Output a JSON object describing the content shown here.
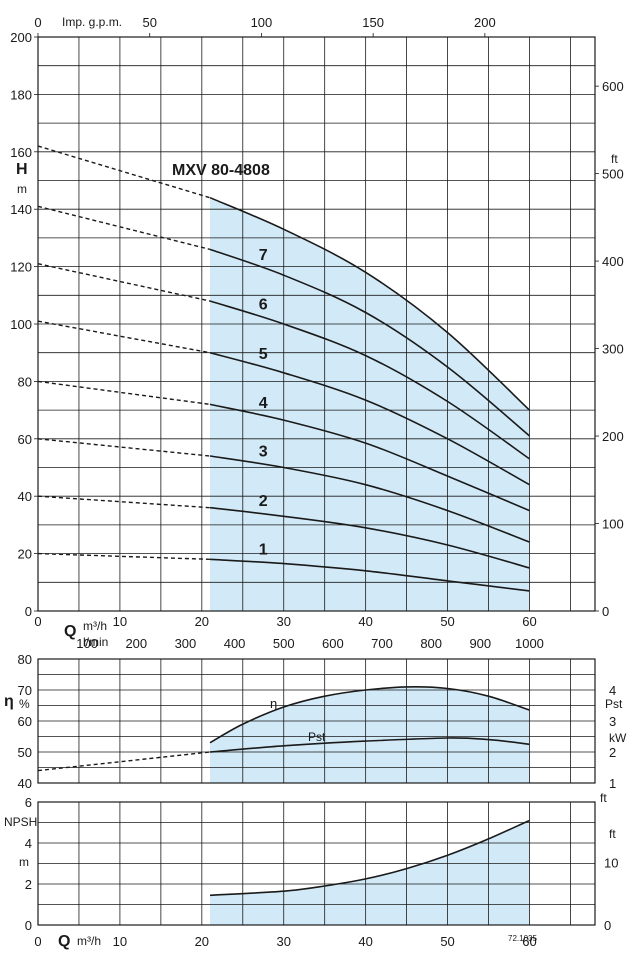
{
  "chart_data": [
    {
      "type": "line",
      "title": "MXV 80-4808",
      "ylabel": "H",
      "yunit": "m",
      "ylabel_right": "ft",
      "xlabel": "Q",
      "xunit": "m³/h",
      "xlim": [
        0,
        60
      ],
      "ylim": [
        0,
        200
      ],
      "x_ticks": [
        0,
        10,
        20,
        30,
        40,
        50,
        60
      ],
      "y_ticks": [
        0,
        20,
        40,
        60,
        80,
        100,
        120,
        140,
        160,
        180,
        200
      ],
      "right_ticks_ft": [
        0,
        100,
        200,
        300,
        400,
        500,
        600
      ],
      "top_axis_label": "Imp. g.p.m.",
      "top_ticks_gpm": [
        0,
        50,
        100,
        150,
        200
      ],
      "bottom_axis2_label": "l/min",
      "lmin_ticks": [
        0,
        100,
        200,
        300,
        400,
        500,
        600,
        700,
        800,
        900,
        1000
      ],
      "operating_range": [
        21,
        60
      ],
      "series": [
        {
          "name": "1",
          "x": [
            21,
            30,
            40,
            50,
            60
          ],
          "y": [
            18,
            16.5,
            14,
            10.5,
            7
          ],
          "shutoff": 20
        },
        {
          "name": "2",
          "x": [
            21,
            30,
            40,
            50,
            60
          ],
          "y": [
            36,
            33,
            29,
            23,
            15
          ],
          "shutoff": 40
        },
        {
          "name": "3",
          "x": [
            21,
            30,
            40,
            50,
            60
          ],
          "y": [
            54,
            50,
            44,
            35,
            24
          ],
          "shutoff": 60
        },
        {
          "name": "4",
          "x": [
            21,
            30,
            40,
            50,
            60
          ],
          "y": [
            72,
            66.5,
            58.5,
            47,
            35
          ],
          "shutoff": 80
        },
        {
          "name": "5",
          "x": [
            21,
            30,
            40,
            50,
            60
          ],
          "y": [
            90,
            83,
            73.5,
            60,
            44
          ],
          "shutoff": 101
        },
        {
          "name": "6",
          "x": [
            21,
            30,
            40,
            50,
            60
          ],
          "y": [
            108,
            100,
            89,
            73,
            53
          ],
          "shutoff": 121
        },
        {
          "name": "7",
          "x": [
            21,
            30,
            40,
            50,
            60
          ],
          "y": [
            126,
            117,
            104,
            85,
            61
          ],
          "shutoff": 141
        },
        {
          "name": "",
          "x": [
            21,
            30,
            40,
            50,
            60
          ],
          "y": [
            144,
            133,
            118,
            97,
            70
          ],
          "shutoff": 162
        }
      ]
    },
    {
      "type": "line",
      "ylabel": "η",
      "yunit": "%",
      "ylabel_right": "Pst",
      "yunit_right": "kW",
      "xlim": [
        0,
        60
      ],
      "ylim": [
        40,
        80
      ],
      "y_ticks": [
        40,
        50,
        60,
        70,
        80
      ],
      "right_ticks_kw": [
        1,
        2,
        3,
        4
      ],
      "series": [
        {
          "name": "η",
          "x": [
            21,
            25,
            30,
            35,
            40,
            45,
            50,
            55,
            60
          ],
          "y": [
            53,
            59,
            64.5,
            68,
            70,
            71,
            70.5,
            68,
            63.5
          ]
        },
        {
          "name": "Pst",
          "x": [
            21,
            30,
            40,
            50,
            55,
            60
          ],
          "y": [
            2.0,
            2.2,
            2.35,
            2.45,
            2.4,
            2.25
          ],
          "extrapolated_from": [
            0,
            1.4
          ]
        }
      ]
    },
    {
      "type": "line",
      "ylabel": "NPSH",
      "yunit": "m",
      "ylabel_right": "ft",
      "xlabel": "Q",
      "xunit": "m³/h",
      "xlim": [
        0,
        60
      ],
      "ylim": [
        0,
        6
      ],
      "y_ticks": [
        0,
        2,
        4,
        6
      ],
      "right_ticks_ft": [
        0,
        10
      ],
      "x_ticks": [
        0,
        10,
        20,
        30,
        40,
        50,
        60
      ],
      "series": [
        {
          "name": "NPSH",
          "x": [
            21,
            30,
            35,
            40,
            45,
            50,
            55,
            60
          ],
          "y": [
            1.45,
            1.65,
            1.9,
            2.25,
            2.75,
            3.4,
            4.2,
            5.1
          ]
        }
      ],
      "code": "72.1035"
    }
  ]
}
